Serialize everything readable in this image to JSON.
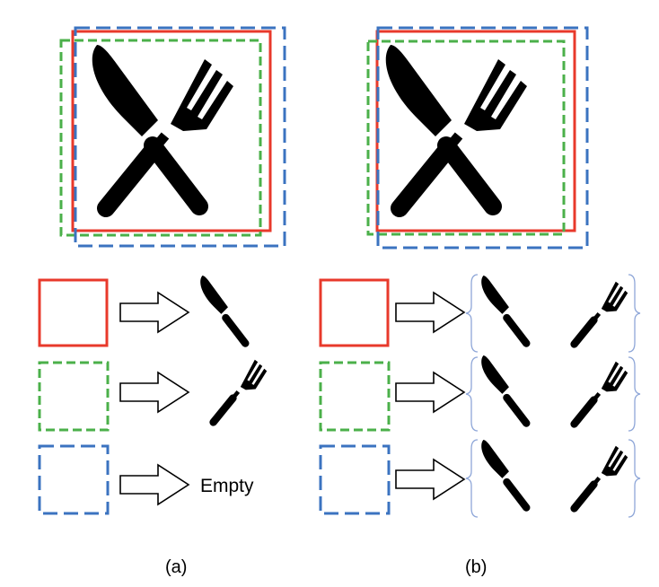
{
  "colors": {
    "red": "#e8392b",
    "green": "#4bb04a",
    "blue": "#3b73c0",
    "bracket": "#8ea6d8",
    "ink": "#000000"
  },
  "icons": {
    "knife": "knife-icon",
    "fork": "fork-icon",
    "cross": "crossed-fork-knife-icon",
    "arrow": "right-arrow-icon"
  },
  "panel_a": {
    "caption": "(a)",
    "rows": [
      {
        "box": "red-solid-box",
        "result": "knife"
      },
      {
        "box": "green-dashed-box",
        "result": "fork"
      },
      {
        "box": "blue-dashed-box",
        "result": "empty",
        "text": "Empty"
      }
    ]
  },
  "panel_b": {
    "caption": "(b)",
    "rows": [
      {
        "box": "red-solid-box",
        "result": "knife-and-fork"
      },
      {
        "box": "green-dashed-box",
        "result": "knife-and-fork"
      },
      {
        "box": "blue-dashed-box",
        "result": "knife-and-fork"
      }
    ]
  }
}
